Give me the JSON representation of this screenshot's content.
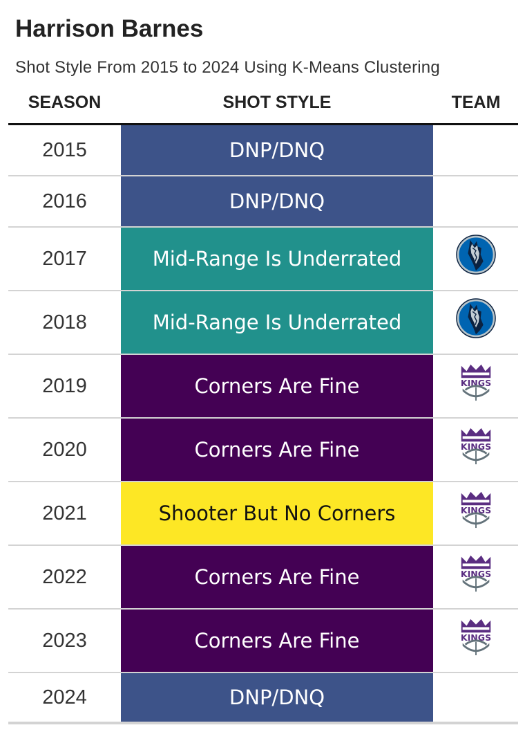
{
  "header": {
    "title": "Harrison Barnes",
    "subtitle": "Shot Style From 2015 to 2024 Using K-Means Clustering"
  },
  "columns": {
    "season": "SEASON",
    "shot_style": "SHOT STYLE",
    "team": "TEAM"
  },
  "colors": {
    "DNP/DNQ": "#3d5389",
    "Mid-Range Is Underrated": "#21918c",
    "Corners Are Fine": "#440154",
    "Shooter But No Corners": "#fde725"
  },
  "text_colors": {
    "DNP/DNQ": "#ffffff",
    "Mid-Range Is Underrated": "#ffffff",
    "Corners Are Fine": "#ffffff",
    "Shooter But No Corners": "#111111"
  },
  "chart_data": {
    "type": "table",
    "columns": [
      "SEASON",
      "SHOT STYLE",
      "TEAM"
    ],
    "rows": [
      {
        "season": "2015",
        "shot_style": "DNP/DNQ",
        "team_icon": ""
      },
      {
        "season": "2016",
        "shot_style": "DNP/DNQ",
        "team_icon": ""
      },
      {
        "season": "2017",
        "shot_style": "Mid-Range Is Underrated",
        "team_icon": "mavericks-logo"
      },
      {
        "season": "2018",
        "shot_style": "Mid-Range Is Underrated",
        "team_icon": "mavericks-logo"
      },
      {
        "season": "2019",
        "shot_style": "Corners Are Fine",
        "team_icon": "kings-logo"
      },
      {
        "season": "2020",
        "shot_style": "Corners Are Fine",
        "team_icon": "kings-logo"
      },
      {
        "season": "2021",
        "shot_style": "Shooter But No Corners",
        "team_icon": "kings-logo"
      },
      {
        "season": "2022",
        "shot_style": "Corners Are Fine",
        "team_icon": "kings-logo"
      },
      {
        "season": "2023",
        "shot_style": "Corners Are Fine",
        "team_icon": "kings-logo"
      },
      {
        "season": "2024",
        "shot_style": "DNP/DNQ",
        "team_icon": ""
      }
    ]
  }
}
